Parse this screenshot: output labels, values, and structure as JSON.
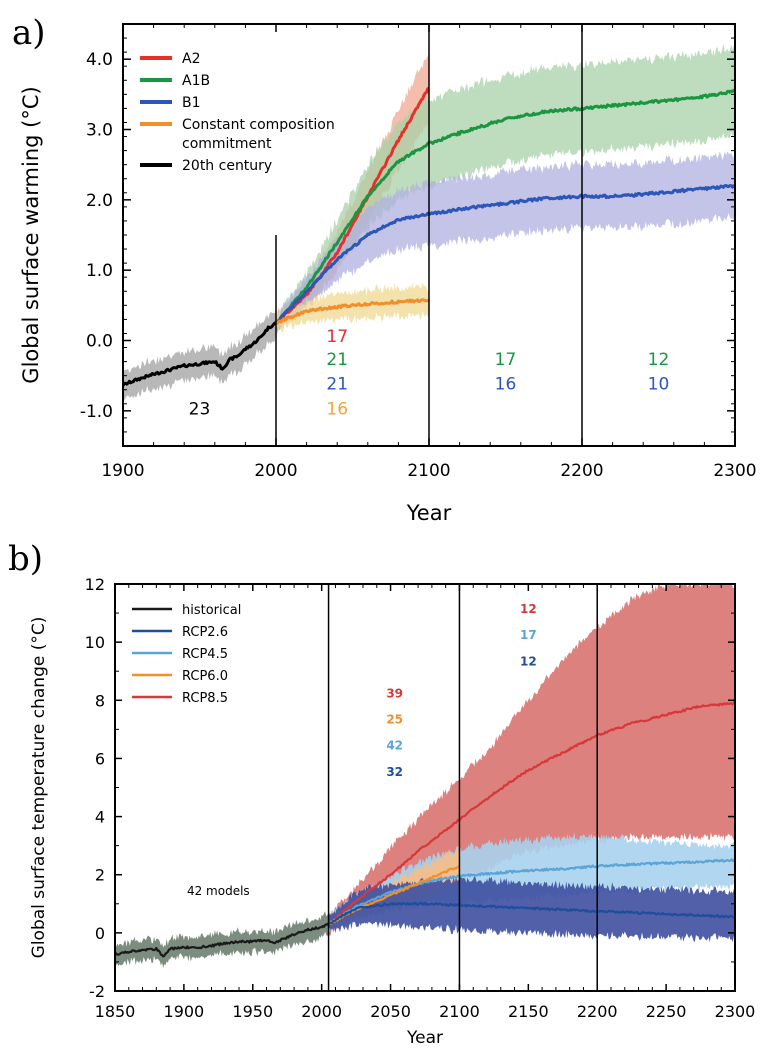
{
  "chart_data": [
    {
      "panel_label": "a)",
      "type": "line",
      "xlabel": "Year",
      "ylabel": "Global surface warming (°C)",
      "xlim": [
        1900,
        2300
      ],
      "ylim": [
        -1.5,
        4.5
      ],
      "xticks": [
        1900,
        2000,
        2100,
        2200,
        2300
      ],
      "yticks": [
        -1.0,
        0.0,
        1.0,
        2.0,
        3.0,
        4.0
      ],
      "ytick_labels": [
        "-1.0",
        "0.0",
        "1.0",
        "2.0",
        "3.0",
        "4.0"
      ],
      "vlines": [
        2000,
        2100,
        2200
      ],
      "legend_position": "top-left",
      "series": [
        {
          "name": "20th century",
          "color": "#000000",
          "band_color": "#a0a0a0",
          "x": [
            1900,
            1910,
            1920,
            1930,
            1940,
            1950,
            1960,
            1965,
            1970,
            1975,
            1980,
            1985,
            1990,
            1995,
            2000
          ],
          "y": [
            -0.63,
            -0.55,
            -0.48,
            -0.42,
            -0.36,
            -0.33,
            -0.3,
            -0.4,
            -0.27,
            -0.22,
            -0.12,
            -0.05,
            0.05,
            0.18,
            0.25
          ],
          "band": [
            0.2,
            0.2,
            0.2,
            0.2,
            0.2,
            0.2,
            0.2,
            0.2,
            0.2,
            0.2,
            0.2,
            0.2,
            0.2,
            0.2,
            0.2
          ]
        },
        {
          "name": "A2",
          "color": "#e8302a",
          "band_color": "#f0a890",
          "x": [
            2000,
            2020,
            2040,
            2060,
            2080,
            2100
          ],
          "y": [
            0.25,
            0.65,
            1.25,
            2.05,
            2.85,
            3.6
          ],
          "band": [
            0.1,
            0.18,
            0.28,
            0.35,
            0.42,
            0.5
          ]
        },
        {
          "name": "A1B",
          "color": "#1a9641",
          "band_color": "#a8d0a8",
          "x": [
            2000,
            2020,
            2040,
            2060,
            2080,
            2100,
            2120,
            2150,
            2175,
            2200,
            2225,
            2250,
            2275,
            2300
          ],
          "y": [
            0.25,
            0.75,
            1.4,
            2.05,
            2.55,
            2.8,
            2.95,
            3.15,
            3.25,
            3.3,
            3.35,
            3.4,
            3.45,
            3.55
          ],
          "band": [
            0.1,
            0.2,
            0.32,
            0.45,
            0.55,
            0.62,
            0.62,
            0.62,
            0.62,
            0.62,
            0.62,
            0.62,
            0.62,
            0.62
          ]
        },
        {
          "name": "B1",
          "color": "#2c56b8",
          "band_color": "#b0b0e0",
          "x": [
            2000,
            2020,
            2040,
            2060,
            2080,
            2100,
            2125,
            2150,
            2175,
            2200,
            2225,
            2250,
            2275,
            2300
          ],
          "y": [
            0.25,
            0.7,
            1.15,
            1.5,
            1.72,
            1.8,
            1.88,
            1.95,
            2.02,
            2.05,
            2.05,
            2.1,
            2.15,
            2.2
          ],
          "band": [
            0.1,
            0.2,
            0.3,
            0.38,
            0.42,
            0.45,
            0.45,
            0.45,
            0.45,
            0.45,
            0.45,
            0.45,
            0.45,
            0.45
          ]
        },
        {
          "name": "Constant composition commitment",
          "color": "#f28e2b",
          "band_color": "#f0d890",
          "x": [
            2000,
            2020,
            2040,
            2060,
            2080,
            2100
          ],
          "y": [
            0.25,
            0.42,
            0.48,
            0.52,
            0.55,
            0.57
          ],
          "band": [
            0.1,
            0.15,
            0.18,
            0.2,
            0.2,
            0.2
          ]
        }
      ],
      "annotations": [
        {
          "text": "23",
          "x": 1950,
          "y": -1.05,
          "color": "#000000"
        },
        {
          "text": "17",
          "x": 2040,
          "y": -0.02,
          "color": "#e8302a"
        },
        {
          "text": "21",
          "x": 2040,
          "y": -0.35,
          "color": "#1a9641"
        },
        {
          "text": "21",
          "x": 2040,
          "y": -0.7,
          "color": "#2c56b8"
        },
        {
          "text": "16",
          "x": 2040,
          "y": -1.05,
          "color": "#f2a43a"
        },
        {
          "text": "17",
          "x": 2150,
          "y": -0.35,
          "color": "#1a9641"
        },
        {
          "text": "16",
          "x": 2150,
          "y": -0.7,
          "color": "#2c56b8"
        },
        {
          "text": "12",
          "x": 2250,
          "y": -0.35,
          "color": "#1a9641"
        },
        {
          "text": "10",
          "x": 2250,
          "y": -0.7,
          "color": "#2c56b8"
        }
      ]
    },
    {
      "panel_label": "b)",
      "type": "line",
      "xlabel": "Year",
      "ylabel": "Global surface temperature change (°C)",
      "xlim": [
        1850,
        2300
      ],
      "ylim": [
        -2,
        12
      ],
      "xticks": [
        1850,
        1900,
        1950,
        2000,
        2050,
        2100,
        2150,
        2200,
        2250,
        2300
      ],
      "yticks": [
        -2,
        0,
        2,
        4,
        6,
        8,
        10,
        12
      ],
      "ytick_labels": [
        "-2",
        "0",
        "2",
        "4",
        "6",
        "8",
        "10",
        "12"
      ],
      "vlines": [
        2005,
        2100,
        2200
      ],
      "legend_position": "top-left",
      "series": [
        {
          "name": "historical",
          "color": "#1a1a1a",
          "band_color": "#6e7f70",
          "x": [
            1850,
            1860,
            1870,
            1880,
            1885,
            1890,
            1900,
            1910,
            1920,
            1930,
            1940,
            1950,
            1960,
            1965,
            1970,
            1980,
            1990,
            2000,
            2005
          ],
          "y": [
            -0.75,
            -0.65,
            -0.6,
            -0.55,
            -0.8,
            -0.55,
            -0.5,
            -0.5,
            -0.45,
            -0.35,
            -0.3,
            -0.3,
            -0.25,
            -0.35,
            -0.25,
            -0.05,
            0.1,
            0.2,
            0.3
          ],
          "band": [
            0.35,
            0.35,
            0.35,
            0.35,
            0.35,
            0.35,
            0.35,
            0.35,
            0.35,
            0.35,
            0.35,
            0.35,
            0.35,
            0.35,
            0.35,
            0.35,
            0.35,
            0.35,
            0.35
          ]
        },
        {
          "name": "RCP8.5",
          "color": "#d7383a",
          "band_color": "#d97371",
          "x": [
            2005,
            2025,
            2050,
            2075,
            2100,
            2125,
            2150,
            2175,
            2200,
            2225,
            2250,
            2275,
            2300
          ],
          "y": [
            0.3,
            1.1,
            2.0,
            3.0,
            3.9,
            4.8,
            5.6,
            6.2,
            6.8,
            7.2,
            7.5,
            7.8,
            7.9
          ],
          "band_low": [
            0.0,
            0.6,
            1.0,
            1.4,
            1.8,
            2.3,
            2.8,
            3.0,
            3.2,
            3.3,
            3.3,
            3.3,
            3.3
          ],
          "band_high": [
            0.6,
            1.6,
            2.9,
            4.2,
            5.3,
            6.5,
            8.0,
            9.4,
            10.5,
            11.5,
            12,
            12,
            12
          ]
        },
        {
          "name": "RCP4.5",
          "color": "#5aa4d8",
          "band_color": "#a8d2ee",
          "x": [
            2005,
            2025,
            2050,
            2075,
            2100,
            2125,
            2150,
            2175,
            2200,
            2225,
            2250,
            2275,
            2300
          ],
          "y": [
            0.3,
            0.9,
            1.4,
            1.75,
            1.95,
            2.05,
            2.15,
            2.2,
            2.3,
            2.35,
            2.4,
            2.45,
            2.5
          ],
          "band_low": [
            0.05,
            0.5,
            0.8,
            1.0,
            1.05,
            1.1,
            1.2,
            1.3,
            1.4,
            1.45,
            1.5,
            1.55,
            1.6
          ],
          "band_high": [
            0.6,
            1.3,
            2.0,
            2.5,
            2.9,
            3.1,
            3.2,
            3.3,
            3.3,
            3.2,
            3.1,
            3.0,
            3.0
          ]
        },
        {
          "name": "RCP6.0",
          "color": "#f28e2b",
          "band_color": "#f6be86",
          "x": [
            2005,
            2025,
            2050,
            2075,
            2100
          ],
          "y": [
            0.3,
            0.8,
            1.3,
            1.8,
            2.3
          ],
          "band_low": [
            0.1,
            0.55,
            0.9,
            1.3,
            1.7
          ],
          "band_high": [
            0.5,
            1.05,
            1.7,
            2.3,
            2.9
          ]
        },
        {
          "name": "RCP2.6",
          "color": "#1f4e9c",
          "band_color": "#3e4fa0",
          "x": [
            2005,
            2025,
            2050,
            2075,
            2100,
            2125,
            2150,
            2175,
            2200,
            2225,
            2250,
            2275,
            2300
          ],
          "y": [
            0.3,
            0.85,
            1.0,
            1.0,
            0.95,
            0.9,
            0.85,
            0.8,
            0.75,
            0.7,
            0.65,
            0.6,
            0.55
          ],
          "band_low": [
            0.05,
            0.3,
            0.3,
            0.2,
            0.1,
            0.05,
            0.0,
            -0.05,
            -0.1,
            -0.1,
            -0.15,
            -0.15,
            -0.2
          ],
          "band_high": [
            0.55,
            1.4,
            1.7,
            1.8,
            1.85,
            1.8,
            1.7,
            1.65,
            1.6,
            1.55,
            1.5,
            1.45,
            1.4
          ]
        }
      ],
      "legend_order": [
        "historical",
        "RCP2.6",
        "RCP4.5",
        "RCP6.0",
        "RCP8.5"
      ],
      "annotations": [
        {
          "text": "42 models",
          "x": 1925,
          "y": 1.3,
          "color": "#000000",
          "kind": "note"
        },
        {
          "text": "39",
          "x": 2053,
          "y": 8.1,
          "color": "#d7383a"
        },
        {
          "text": "25",
          "x": 2053,
          "y": 7.2,
          "color": "#f28e2b"
        },
        {
          "text": "42",
          "x": 2053,
          "y": 6.3,
          "color": "#5aa4d8"
        },
        {
          "text": "32",
          "x": 2053,
          "y": 5.4,
          "color": "#1f4e9c"
        },
        {
          "text": "12",
          "x": 2150,
          "y": 11.0,
          "color": "#d7383a"
        },
        {
          "text": "17",
          "x": 2150,
          "y": 10.1,
          "color": "#5aa4d8"
        },
        {
          "text": "12",
          "x": 2150,
          "y": 9.2,
          "color": "#1f4e9c"
        }
      ]
    }
  ]
}
